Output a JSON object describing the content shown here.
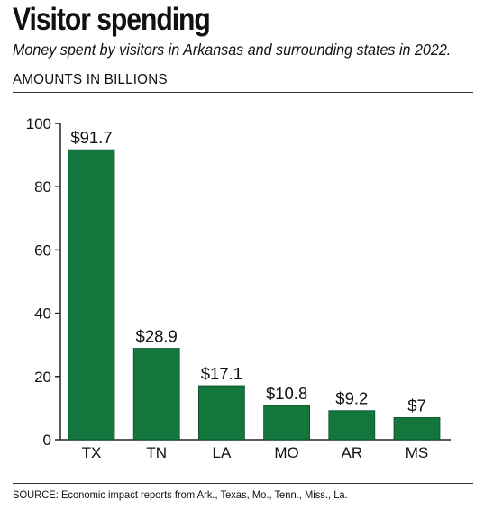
{
  "header": {
    "title": "Visitor spending",
    "subtitle": "Money spent by visitors in Arkansas and surrounding states in 2022.",
    "units_label": "AMOUNTS IN BILLIONS"
  },
  "footer": {
    "source": "SOURCE: Economic impact reports from Ark., Texas, Mo., Tenn., Miss., La."
  },
  "colors": {
    "bar": "#12763d",
    "text": "#111111",
    "axis": "#222222"
  },
  "chart_data": {
    "type": "bar",
    "title": "Visitor spending",
    "subtitle": "Money spent by visitors in Arkansas and surrounding states in 2022.",
    "xlabel": "",
    "ylabel": "",
    "categories": [
      "TX",
      "TN",
      "LA",
      "MO",
      "AR",
      "MS"
    ],
    "values": [
      91.7,
      28.9,
      17.1,
      10.8,
      9.2,
      7
    ],
    "data_labels": [
      "$91.7",
      "$28.9",
      "$17.1",
      "$10.8",
      "$9.2",
      "$7"
    ],
    "ylim": [
      0,
      100
    ],
    "yticks": [
      0,
      20,
      40,
      60,
      80,
      100
    ],
    "grid": false,
    "legend": "none"
  }
}
